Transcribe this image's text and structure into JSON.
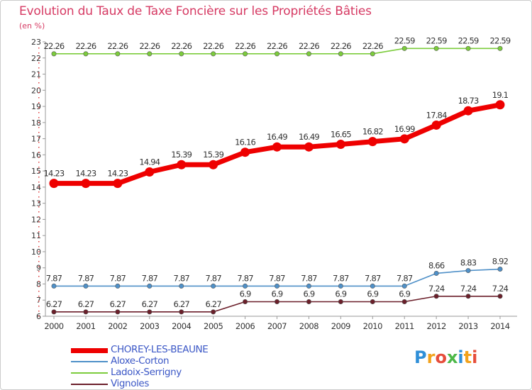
{
  "title": "Evolution du Taux de Taxe Foncière sur les Propriétés Bâties",
  "subtitle": "(en %)",
  "brand": {
    "letters": [
      "P",
      "r",
      "o",
      "x",
      "i",
      "t",
      "i"
    ],
    "colors": [
      "#2f8fd8",
      "#f2a21c",
      "#e64d3b",
      "#4cb848",
      "#2f8fd8",
      "#f2a21c",
      "#e64d3b"
    ]
  },
  "chart_data": {
    "type": "line",
    "title": "Evolution du Taux de Taxe Foncière sur les Propriétés Bâties",
    "ylabel": "(en %)",
    "xlabel": "",
    "ylim": [
      6,
      23
    ],
    "yticks": [
      "6",
      "7",
      "8",
      "9",
      "10",
      "11",
      "12",
      "13",
      "14",
      "15",
      "16",
      "17",
      "18",
      "19",
      "20",
      "21",
      "22",
      "23"
    ],
    "categories": [
      "2000",
      "2001",
      "2002",
      "2003",
      "2004",
      "2005",
      "2006",
      "2007",
      "2008",
      "2009",
      "2010",
      "2011",
      "2012",
      "2013",
      "2014"
    ],
    "series": [
      {
        "name": "Ladoix-Serrigny",
        "color": "#7ccc3c",
        "labels": [
          "22.26",
          "22.26",
          "22.26",
          "22.26",
          "22.26",
          "22.26",
          "22.26",
          "22.26",
          "22.26",
          "22.26",
          "22.26",
          "22.59",
          "22.59",
          "22.59",
          "22.59"
        ],
        "values": [
          22.26,
          22.26,
          22.26,
          22.26,
          22.26,
          22.26,
          22.26,
          22.26,
          22.26,
          22.26,
          22.26,
          22.59,
          22.59,
          22.59,
          22.59
        ]
      },
      {
        "name": "Aloxe-Corton",
        "color": "#4f90c8",
        "labels": [
          "7.87",
          "7.87",
          "7.87",
          "7.87",
          "7.87",
          "7.87",
          "7.87",
          "7.87",
          "7.87",
          "7.87",
          "7.87",
          "7.87",
          "8.66",
          "8.83",
          "8.92"
        ],
        "values": [
          7.87,
          7.87,
          7.87,
          7.87,
          7.87,
          7.87,
          7.87,
          7.87,
          7.87,
          7.87,
          7.87,
          7.87,
          8.66,
          8.83,
          8.92
        ]
      },
      {
        "name": "Vignoles",
        "color": "#6b1f2a",
        "labels": [
          "6.27",
          "6.27",
          "6.27",
          "6.27",
          "6.27",
          "6.27",
          "6.9",
          "6.9",
          "6.9",
          "6.9",
          "6.9",
          "6.9",
          "7.24",
          "7.24",
          "7.24"
        ],
        "values": [
          6.27,
          6.27,
          6.27,
          6.27,
          6.27,
          6.27,
          6.9,
          6.9,
          6.9,
          6.9,
          6.9,
          6.9,
          7.24,
          7.24,
          7.24
        ]
      },
      {
        "name": "CHOREY-LES-BEAUNE",
        "color": "#ee0000",
        "labels": [
          "14.23",
          "14.23",
          "14.23",
          "14.94",
          "15.39",
          "15.39",
          "16.16",
          "16.49",
          "16.49",
          "16.65",
          "16.82",
          "16.99",
          "17.84",
          "18.73",
          "19.1"
        ],
        "values": [
          14.23,
          14.23,
          14.23,
          14.94,
          15.39,
          15.39,
          16.16,
          16.49,
          16.49,
          16.65,
          16.82,
          16.99,
          17.84,
          18.73,
          19.1
        ]
      }
    ],
    "legend": [
      "CHOREY-LES-BEAUNE",
      "Aloxe-Corton",
      "Ladoix-Serrigny",
      "Vignoles"
    ],
    "legend_position": "bottom-left",
    "grid": false
  }
}
